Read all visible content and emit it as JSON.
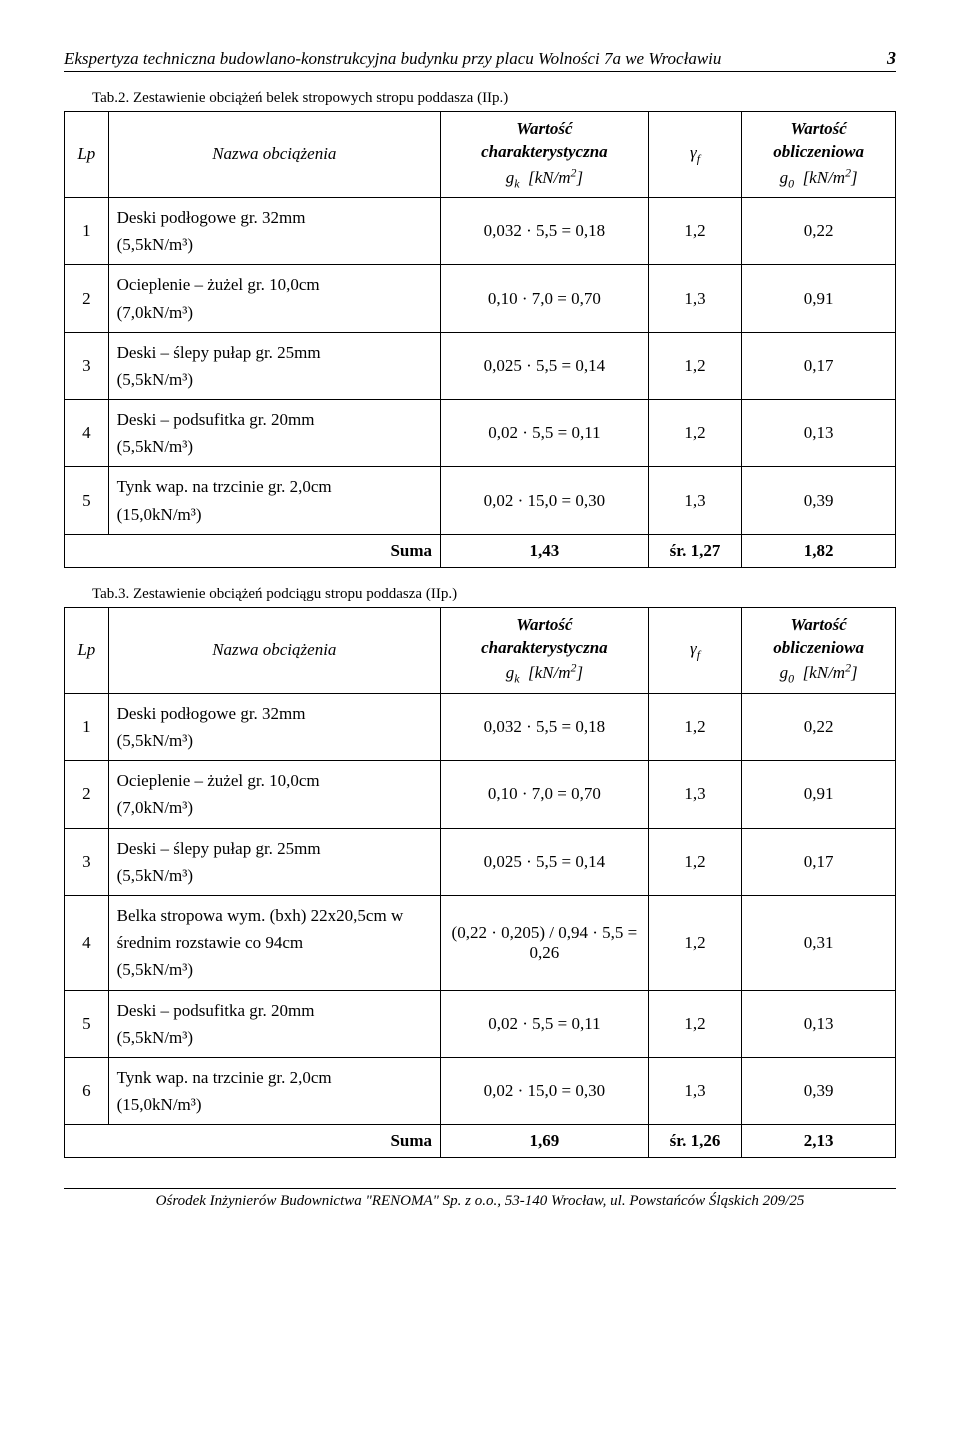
{
  "header": {
    "title": "Ekspertyza techniczna budowlano-konstrukcyjna budynku przy placu Wolności 7a we Wrocławiu",
    "page_number": "3"
  },
  "table_a": {
    "caption": "Tab.2. Zestawienie obciążeń belek stropowych stropu poddasza (IIp.)",
    "head": {
      "lp": "Lp",
      "name": "Nazwa obciążenia",
      "char_l1": "Wartość",
      "char_l2": "charakterystyczna",
      "char_l3": "g_k  [kN/m²]",
      "gf": "γ_f",
      "go_l1": "Wartość",
      "go_l2": "obliczeniowa",
      "go_l3": "g_0  [kN/m²]"
    },
    "rows": [
      {
        "lp": "1",
        "name_l1": "Deski podłogowe gr. 32mm",
        "name_l2": "(5,5kN/m³)",
        "char": "0,032 · 5,5 = 0,18",
        "gf": "1,2",
        "go": "0,22"
      },
      {
        "lp": "2",
        "name_l1": "Ocieplenie – żużel gr. 10,0cm",
        "name_l2": "(7,0kN/m³)",
        "char": "0,10 · 7,0 = 0,70",
        "gf": "1,3",
        "go": "0,91"
      },
      {
        "lp": "3",
        "name_l1": "Deski – ślepy pułap gr. 25mm",
        "name_l2": "(5,5kN/m³)",
        "char": "0,025 · 5,5 = 0,14",
        "gf": "1,2",
        "go": "0,17"
      },
      {
        "lp": "4",
        "name_l1": "Deski – podsufitka gr. 20mm",
        "name_l2": "(5,5kN/m³)",
        "char": "0,02 · 5,5 = 0,11",
        "gf": "1,2",
        "go": "0,13"
      },
      {
        "lp": "5",
        "name_l1": "Tynk wap. na trzcinie gr. 2,0cm",
        "name_l2": "(15,0kN/m³)",
        "char": "0,02 · 15,0 = 0,30",
        "gf": "1,3",
        "go": "0,39"
      }
    ],
    "sum": {
      "label": "Suma",
      "char": "1,43",
      "gf": "śr. 1,27",
      "go": "1,82"
    }
  },
  "table_b": {
    "caption": "Tab.3. Zestawienie obciążeń podciągu stropu poddasza (IIp.)",
    "head": {
      "lp": "Lp",
      "name": "Nazwa obciążenia",
      "char_l1": "Wartość",
      "char_l2": "charakterystyczna",
      "char_l3": "g_k  [kN/m²]",
      "gf": "γ_f",
      "go_l1": "Wartość",
      "go_l2": "obliczeniowa",
      "go_l3": "g_0  [kN/m²]"
    },
    "rows": [
      {
        "lp": "1",
        "name_l1": "Deski podłogowe gr. 32mm",
        "name_l2": "(5,5kN/m³)",
        "name_l3": "",
        "char": "0,032 · 5,5 = 0,18",
        "gf": "1,2",
        "go": "0,22"
      },
      {
        "lp": "2",
        "name_l1": "Ocieplenie – żużel gr. 10,0cm",
        "name_l2": "(7,0kN/m³)",
        "name_l3": "",
        "char": "0,10 · 7,0 = 0,70",
        "gf": "1,3",
        "go": "0,91"
      },
      {
        "lp": "3",
        "name_l1": "Deski – ślepy pułap gr. 25mm",
        "name_l2": "(5,5kN/m³)",
        "name_l3": "",
        "char": "0,025 · 5,5 = 0,14",
        "gf": "1,2",
        "go": "0,17"
      },
      {
        "lp": "4",
        "name_l1": "Belka stropowa wym. (bxh) 22x20,5cm w średnim rozstawie co 94cm",
        "name_l2": "(5,5kN/m³)",
        "name_l3": "",
        "char": "(0,22 · 0,205) / 0,94 · 5,5 = 0,26",
        "gf": "1,2",
        "go": "0,31"
      },
      {
        "lp": "5",
        "name_l1": "Deski – podsufitka gr. 20mm",
        "name_l2": "(5,5kN/m³)",
        "name_l3": "",
        "char": "0,02 · 5,5 = 0,11",
        "gf": "1,2",
        "go": "0,13"
      },
      {
        "lp": "6",
        "name_l1": "Tynk wap. na trzcinie gr. 2,0cm",
        "name_l2": "(15,0kN/m³)",
        "name_l3": "",
        "char": "0,02 · 15,0 = 0,30",
        "gf": "1,3",
        "go": "0,39"
      }
    ],
    "sum": {
      "label": "Suma",
      "char": "1,69",
      "gf": "śr. 1,26",
      "go": "2,13"
    }
  },
  "footer": "Ośrodek Inżynierów Budownictwa \"RENOMA\" Sp. z o.o., 53-140 Wrocław, ul. Powstańców Śląskich 209/25"
}
